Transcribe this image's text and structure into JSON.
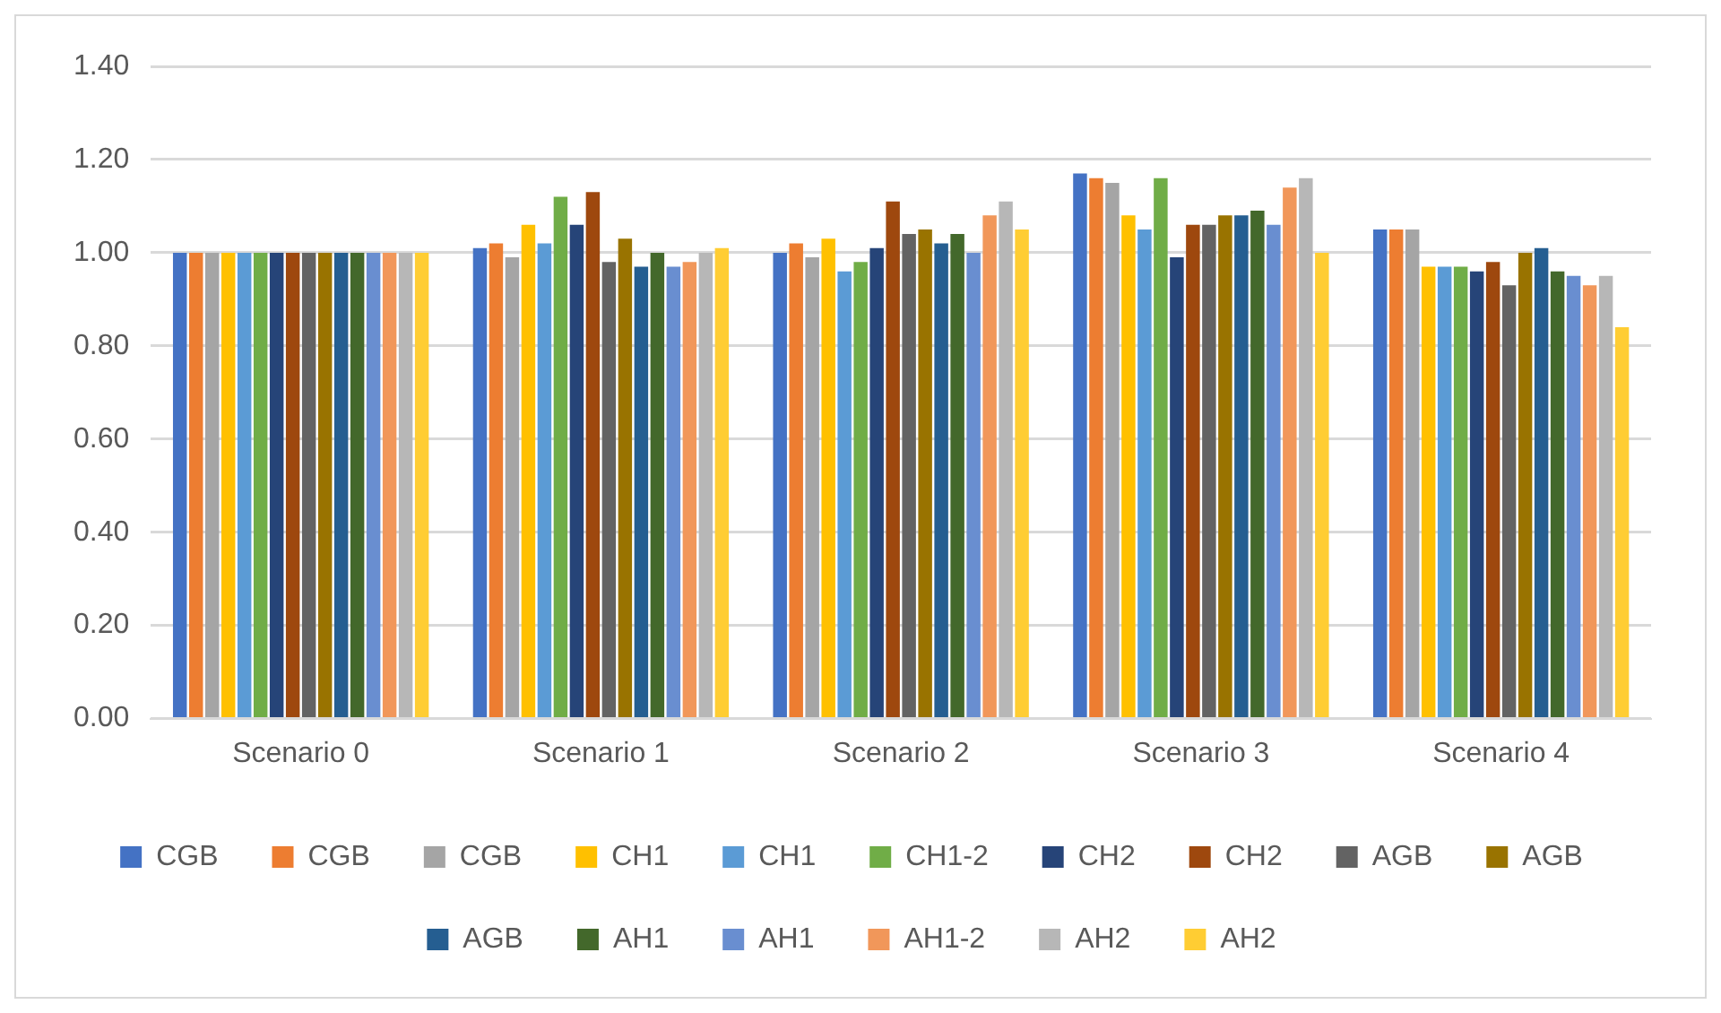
{
  "chart_data": {
    "type": "bar",
    "categories": [
      "Scenario 0",
      "Scenario 1",
      "Scenario 2",
      "Scenario 3",
      "Scenario 4"
    ],
    "series": [
      {
        "name": "CGB",
        "color": "#4472c4",
        "values": [
          1.0,
          1.01,
          1.0,
          1.17,
          1.05
        ]
      },
      {
        "name": "CGB",
        "color": "#ed7d31",
        "values": [
          1.0,
          1.02,
          1.02,
          1.16,
          1.05
        ]
      },
      {
        "name": "CGB",
        "color": "#a5a5a5",
        "values": [
          1.0,
          0.99,
          0.99,
          1.15,
          1.05
        ]
      },
      {
        "name": "CH1",
        "color": "#ffc000",
        "values": [
          1.0,
          1.06,
          1.03,
          1.08,
          0.97
        ]
      },
      {
        "name": "CH1",
        "color": "#5b9bd5",
        "values": [
          1.0,
          1.02,
          0.96,
          1.05,
          0.97
        ]
      },
      {
        "name": "CH1-2",
        "color": "#70ad47",
        "values": [
          1.0,
          1.12,
          0.98,
          1.16,
          0.97
        ]
      },
      {
        "name": "CH2",
        "color": "#264478",
        "values": [
          1.0,
          1.06,
          1.01,
          0.99,
          0.96
        ]
      },
      {
        "name": "CH2",
        "color": "#9e480e",
        "values": [
          1.0,
          1.13,
          1.11,
          1.06,
          0.98
        ]
      },
      {
        "name": "AGB",
        "color": "#636363",
        "values": [
          1.0,
          0.98,
          1.04,
          1.06,
          0.93
        ]
      },
      {
        "name": "AGB",
        "color": "#997300",
        "values": [
          1.0,
          1.03,
          1.05,
          1.08,
          1.0
        ]
      },
      {
        "name": "AGB",
        "color": "#255e91",
        "values": [
          1.0,
          0.97,
          1.02,
          1.08,
          1.01
        ]
      },
      {
        "name": "AH1",
        "color": "#43682b",
        "values": [
          1.0,
          1.0,
          1.04,
          1.09,
          0.96
        ]
      },
      {
        "name": "AH1",
        "color": "#698ed0",
        "values": [
          1.0,
          0.97,
          1.0,
          1.06,
          0.95
        ]
      },
      {
        "name": "AH1-2",
        "color": "#f1975a",
        "values": [
          1.0,
          0.98,
          1.08,
          1.14,
          0.93
        ]
      },
      {
        "name": "AH2",
        "color": "#b7b7b7",
        "values": [
          1.0,
          1.0,
          1.11,
          1.16,
          0.95
        ]
      },
      {
        "name": "AH2",
        "color": "#ffcd33",
        "values": [
          1.0,
          1.01,
          1.05,
          1.0,
          0.84
        ]
      }
    ],
    "ylim": [
      0,
      1.4
    ],
    "yticks": [
      {
        "value": 0,
        "label": "0.00"
      },
      {
        "value": 0.2,
        "label": "0.20"
      },
      {
        "value": 0.4,
        "label": "0.40"
      },
      {
        "value": 0.6,
        "label": "0.60"
      },
      {
        "value": 0.8,
        "label": "0.80"
      },
      {
        "value": 1.0,
        "label": "1.00"
      },
      {
        "value": 1.2,
        "label": "1.20"
      },
      {
        "value": 1.4,
        "label": "1.40"
      }
    ],
    "grid": "y",
    "legend": "bottom"
  }
}
